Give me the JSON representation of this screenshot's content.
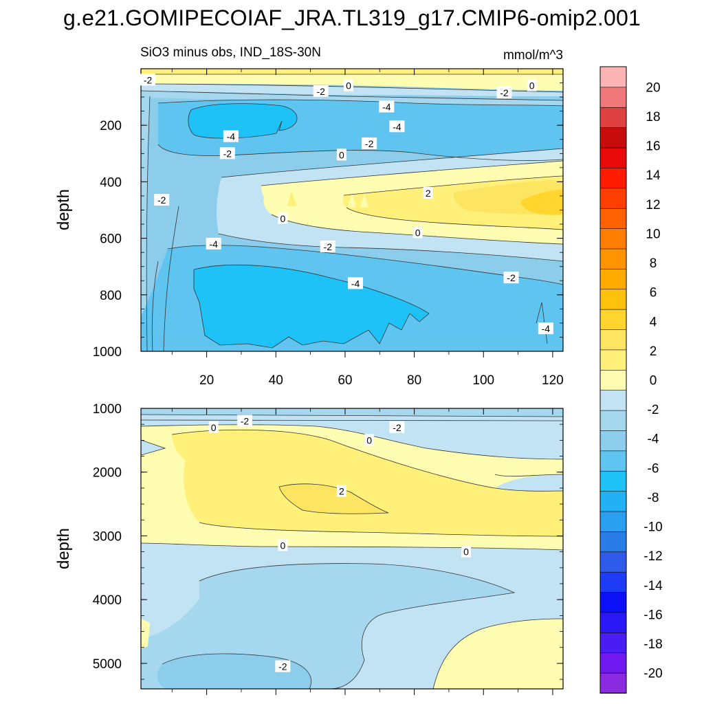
{
  "title": "g.e21.GOMIPECOIAF_JRA.TL319_g17.CMIP6-omip2.001",
  "chart_data": {
    "type": "contour",
    "subtitle": "SiO3 minus obs, IND_18S-30N",
    "units": "mmol/m^3",
    "xlim": [
      1,
      123
    ],
    "x_ticks": [
      20,
      40,
      60,
      80,
      100,
      120
    ],
    "colorbar": {
      "levels": [
        -20,
        -18,
        -16,
        -14,
        -12,
        -10,
        -8,
        -6,
        -4,
        -2,
        0,
        2,
        4,
        6,
        8,
        10,
        12,
        14,
        16,
        18,
        20
      ],
      "tick_labels": [
        "20",
        "18",
        "16",
        "14",
        "12",
        "10",
        "8",
        "6",
        "4",
        "2",
        "0",
        "-2",
        "-4",
        "-6",
        "-8",
        "-10",
        "-12",
        "-14",
        "-16",
        "-18",
        "-20"
      ],
      "colors": [
        "#8a2be2",
        "#6f19f0",
        "#4a1df5",
        "#2a18f7",
        "#0b10f7",
        "#1e3cf5",
        "#2f5cea",
        "#2a7ce9",
        "#2a9eef",
        "#23b1f5",
        "#1ec2f7",
        "#5fc5f0",
        "#8dcdec",
        "#a5d7ee",
        "#c1e3f4",
        "#fffdb1",
        "#fff07a",
        "#fde562",
        "#ffd52e",
        "#ffc20c",
        "#ffab00",
        "#ff9400",
        "#ff7d00",
        "#ff6200",
        "#ff3f00",
        "#ff1c00",
        "#ea0a0a",
        "#c80b0b",
        "#df4040",
        "#f07878",
        "#fbb4b4"
      ]
    },
    "panels": [
      {
        "name": "upper",
        "ylabel": "depth",
        "ylim": [
          0,
          1000
        ],
        "y_ticks": [
          200,
          400,
          600,
          800,
          1000
        ],
        "contour_labels": [
          {
            "text": "-2",
            "x": 3,
            "depth": 40
          },
          {
            "text": "-2",
            "x": 53,
            "depth": 80
          },
          {
            "text": "0",
            "x": 61,
            "depth": 60
          },
          {
            "text": "0",
            "x": 114,
            "depth": 60
          },
          {
            "text": "-2",
            "x": 106,
            "depth": 85
          },
          {
            "text": "-4",
            "x": 72,
            "depth": 135
          },
          {
            "text": "-4",
            "x": 75,
            "depth": 205
          },
          {
            "text": "-4",
            "x": 27,
            "depth": 240
          },
          {
            "text": "-2",
            "x": 67,
            "depth": 265
          },
          {
            "text": "-2",
            "x": 26,
            "depth": 300
          },
          {
            "text": "0",
            "x": 59,
            "depth": 305
          },
          {
            "text": "-2",
            "x": 7,
            "depth": 465
          },
          {
            "text": "2",
            "x": 84,
            "depth": 440
          },
          {
            "text": "0",
            "x": 42,
            "depth": 530
          },
          {
            "text": "0",
            "x": 81,
            "depth": 580
          },
          {
            "text": "-4",
            "x": 22,
            "depth": 620
          },
          {
            "text": "-2",
            "x": 55,
            "depth": 630
          },
          {
            "text": "-4",
            "x": 63,
            "depth": 760
          },
          {
            "text": "-2",
            "x": 108,
            "depth": 740
          },
          {
            "text": "-4",
            "x": 118,
            "depth": 920
          }
        ]
      },
      {
        "name": "lower",
        "ylabel": "depth",
        "ylim": [
          1000,
          5400
        ],
        "y_ticks": [
          1000,
          2000,
          3000,
          4000,
          5000
        ],
        "contour_labels": [
          {
            "text": "0",
            "x": 22,
            "depth": 1300
          },
          {
            "text": "-2",
            "x": 31,
            "depth": 1200
          },
          {
            "text": "-2",
            "x": 75,
            "depth": 1300
          },
          {
            "text": "0",
            "x": 67,
            "depth": 1500
          },
          {
            "text": "2",
            "x": 59,
            "depth": 2300
          },
          {
            "text": "0",
            "x": 42,
            "depth": 3150
          },
          {
            "text": "0",
            "x": 95,
            "depth": 3250
          },
          {
            "text": "-2",
            "x": 42,
            "depth": 5050
          }
        ]
      }
    ]
  }
}
